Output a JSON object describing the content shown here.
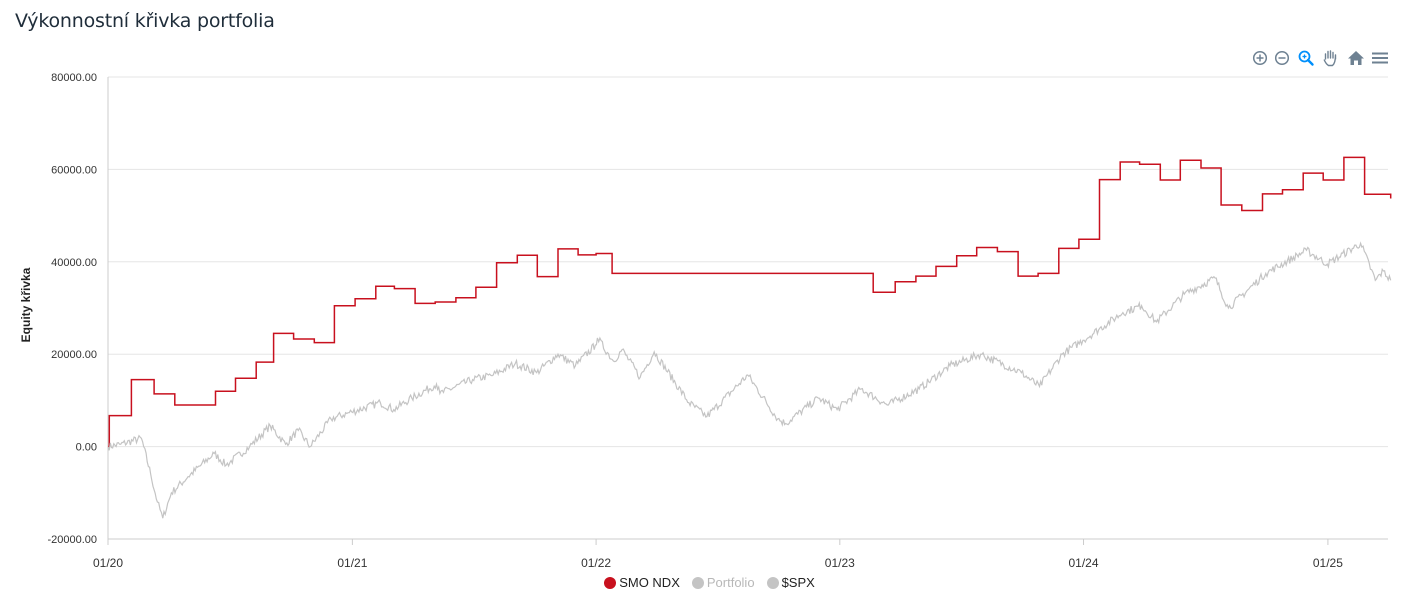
{
  "title": "Výkonnostní křivka portfolia",
  "toolbar": {
    "icons": [
      "zoom-in-icon",
      "zoom-out-icon",
      "zoom-selection-icon",
      "pan-hand-icon",
      "home-reset-icon",
      "menu-icon"
    ]
  },
  "colors": {
    "smo_ndx": "#c8101e",
    "benchmark": "#c4c4c4",
    "grid": "#e5e5e5",
    "toolbar_icon": "#6e8192",
    "toolbar_active": "#008ffb"
  },
  "legend": [
    {
      "name": "SMO NDX",
      "color": "#c8101e",
      "active": true
    },
    {
      "name": "Portfolio",
      "color": "#c4c4c4",
      "active": false
    },
    {
      "name": "$SPX",
      "color": "#c4c4c4",
      "active": true
    }
  ],
  "chart_data": {
    "type": "line",
    "ylabel": "Equity křivka",
    "ylim": [
      -20000,
      80000
    ],
    "yticks": [
      "80000.00",
      "60000.00",
      "40000.00",
      "20000.00",
      "0.00",
      "-20000.00"
    ],
    "xlim": [
      "2020-01",
      "2025-04"
    ],
    "xticks": [
      "01/20",
      "01/21",
      "01/22",
      "01/23",
      "01/24",
      "01/25"
    ],
    "grid": true,
    "legend_position": "bottom",
    "series": [
      {
        "name": "SMO NDX",
        "step": true,
        "points": [
          [
            "2020-01-01",
            0
          ],
          [
            "2020-01-03",
            6700
          ],
          [
            "2020-02-05",
            14500
          ],
          [
            "2020-03-10",
            11400
          ],
          [
            "2020-04-10",
            9000
          ],
          [
            "2020-06-10",
            12000
          ],
          [
            "2020-07-10",
            14800
          ],
          [
            "2020-08-10",
            18300
          ],
          [
            "2020-09-05",
            24500
          ],
          [
            "2020-10-05",
            23300
          ],
          [
            "2020-11-05",
            22500
          ],
          [
            "2020-12-05",
            30500
          ],
          [
            "2021-01-05",
            32000
          ],
          [
            "2021-02-05",
            34700
          ],
          [
            "2021-03-05",
            34200
          ],
          [
            "2021-04-05",
            31000
          ],
          [
            "2021-05-05",
            31300
          ],
          [
            "2021-06-05",
            32200
          ],
          [
            "2021-07-05",
            34500
          ],
          [
            "2021-08-05",
            39800
          ],
          [
            "2021-09-05",
            41400
          ],
          [
            "2021-10-05",
            36800
          ],
          [
            "2021-11-05",
            42800
          ],
          [
            "2021-12-05",
            41500
          ],
          [
            "2022-01-01",
            41800
          ],
          [
            "2022-01-25",
            37500
          ],
          [
            "2023-02-20",
            33400
          ],
          [
            "2023-03-25",
            35700
          ],
          [
            "2023-04-25",
            36900
          ],
          [
            "2023-05-25",
            39000
          ],
          [
            "2023-06-25",
            41300
          ],
          [
            "2023-07-25",
            43100
          ],
          [
            "2023-08-25",
            42200
          ],
          [
            "2023-09-25",
            36900
          ],
          [
            "2023-10-25",
            37500
          ],
          [
            "2023-11-25",
            42900
          ],
          [
            "2023-12-25",
            44900
          ],
          [
            "2024-01-25",
            57800
          ],
          [
            "2024-02-25",
            61600
          ],
          [
            "2024-03-25",
            61100
          ],
          [
            "2024-04-25",
            57700
          ],
          [
            "2024-05-25",
            62000
          ],
          [
            "2024-06-25",
            60300
          ],
          [
            "2024-07-25",
            52300
          ],
          [
            "2024-08-25",
            51100
          ],
          [
            "2024-09-25",
            54700
          ],
          [
            "2024-10-25",
            55600
          ],
          [
            "2024-11-25",
            59200
          ],
          [
            "2024-12-25",
            57700
          ],
          [
            "2025-01-25",
            62600
          ],
          [
            "2025-02-25",
            54600
          ],
          [
            "2025-04-05",
            53700
          ]
        ]
      },
      {
        "name": "$SPX",
        "step": false,
        "points": [
          [
            "2020-01-01",
            0
          ],
          [
            "2020-01-20",
            500
          ],
          [
            "2020-02-20",
            1800
          ],
          [
            "2020-03-05",
            -6000
          ],
          [
            "2020-03-15",
            -12000
          ],
          [
            "2020-03-23",
            -15500
          ],
          [
            "2020-04-05",
            -10000
          ],
          [
            "2020-04-30",
            -6500
          ],
          [
            "2020-06-08",
            -1500
          ],
          [
            "2020-06-26",
            -4000
          ],
          [
            "2020-07-31",
            0
          ],
          [
            "2020-08-31",
            4500
          ],
          [
            "2020-09-23",
            500
          ],
          [
            "2020-10-12",
            3500
          ],
          [
            "2020-10-30",
            0
          ],
          [
            "2020-11-30",
            6000
          ],
          [
            "2020-12-31",
            7500
          ],
          [
            "2021-02-12",
            9500
          ],
          [
            "2021-03-04",
            8000
          ],
          [
            "2021-03-31",
            10500
          ],
          [
            "2021-05-07",
            13500
          ],
          [
            "2021-05-12",
            11500
          ],
          [
            "2021-06-30",
            14500
          ],
          [
            "2021-07-31",
            15500
          ],
          [
            "2021-09-02",
            18000
          ],
          [
            "2021-10-04",
            16000
          ],
          [
            "2021-11-05",
            20000
          ],
          [
            "2021-12-01",
            17500
          ],
          [
            "2021-12-31",
            22000
          ],
          [
            "2022-01-03",
            23500
          ],
          [
            "2022-01-27",
            18500
          ],
          [
            "2022-02-09",
            21000
          ],
          [
            "2022-03-08",
            15000
          ],
          [
            "2022-03-29",
            20500
          ],
          [
            "2022-05-20",
            9500
          ],
          [
            "2022-06-16",
            6500
          ],
          [
            "2022-08-16",
            15500
          ],
          [
            "2022-09-30",
            6000
          ],
          [
            "2022-10-12",
            5000
          ],
          [
            "2022-11-30",
            10500
          ],
          [
            "2022-12-28",
            8000
          ],
          [
            "2023-02-02",
            12500
          ],
          [
            "2023-03-13",
            9000
          ],
          [
            "2023-04-30",
            12500
          ],
          [
            "2023-06-15",
            17500
          ],
          [
            "2023-07-31",
            20000
          ],
          [
            "2023-09-30",
            16000
          ],
          [
            "2023-10-27",
            13000
          ],
          [
            "2023-11-30",
            20000
          ],
          [
            "2023-12-31",
            23000
          ],
          [
            "2024-02-29",
            29000
          ],
          [
            "2024-03-28",
            30500
          ],
          [
            "2024-04-19",
            27000
          ],
          [
            "2024-05-31",
            33000
          ],
          [
            "2024-07-16",
            36500
          ],
          [
            "2024-08-05",
            30000
          ],
          [
            "2024-09-30",
            37500
          ],
          [
            "2024-11-30",
            42500
          ],
          [
            "2024-12-31",
            39500
          ],
          [
            "2025-02-19",
            44000
          ],
          [
            "2025-03-13",
            36000
          ],
          [
            "2025-03-25",
            38000
          ],
          [
            "2025-04-05",
            36000
          ]
        ]
      }
    ]
  }
}
